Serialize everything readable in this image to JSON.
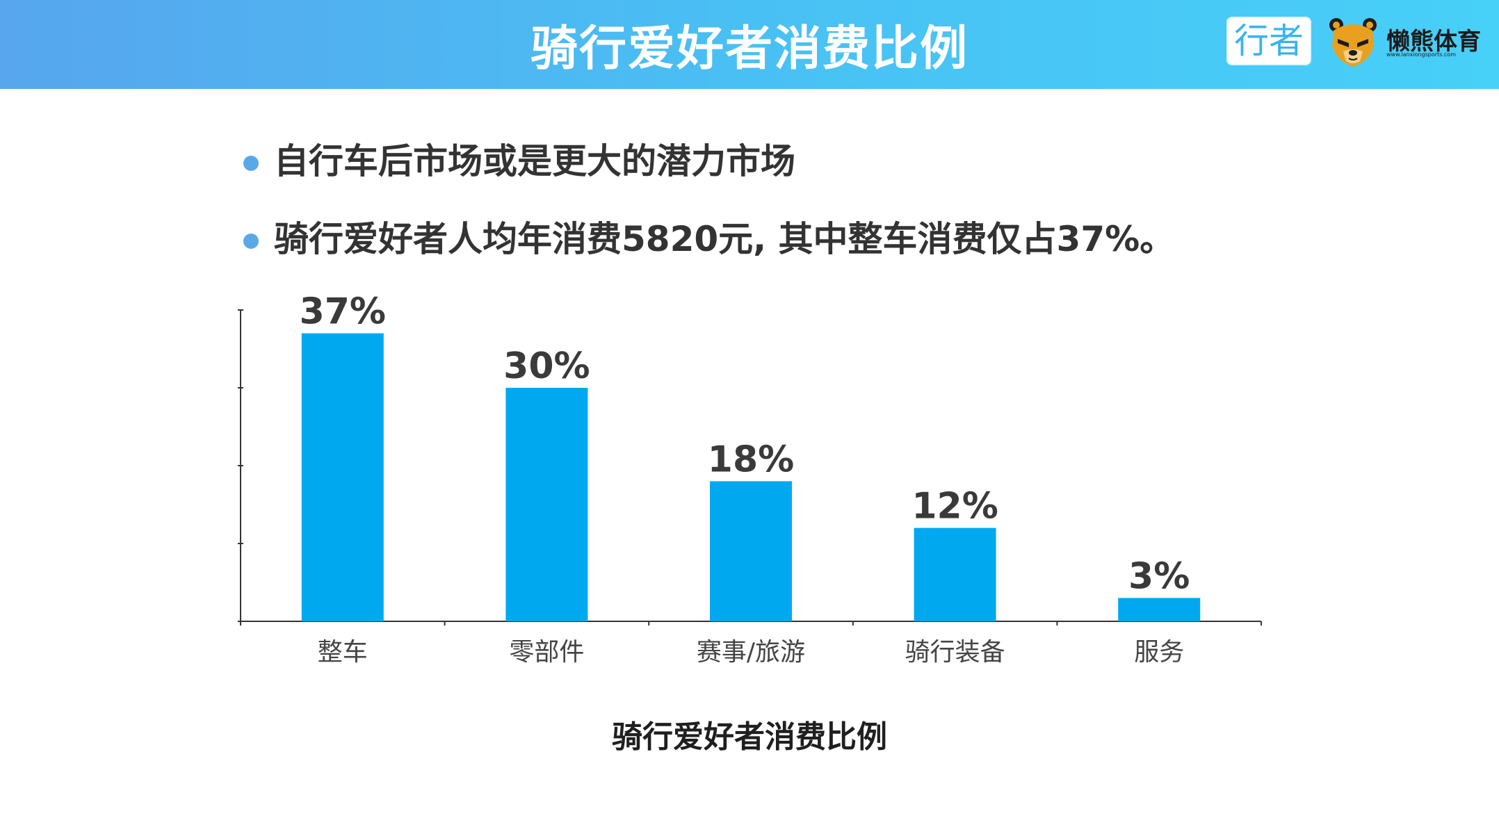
{
  "header": {
    "title": "骑行爱好者消费比例",
    "badge_text": "行者",
    "brand_name": "懒熊体育",
    "brand_url": "www.lanxiongsports.com",
    "bg_color_start": "#57a6ee",
    "bg_color_end": "#47d0f8"
  },
  "bullets": [
    {
      "text": "自行车后市场或是更大的潜力市场",
      "icon": "bullet-dot"
    },
    {
      "text": "骑行爱好者人均年消费5820元, 其中整车消费仅占37%。",
      "icon": "bullet-dot"
    }
  ],
  "chart_data": {
    "type": "bar",
    "title": "骑行爱好者消费比例",
    "categories": [
      "整车",
      "零部件",
      "赛事/旅游",
      "骑行装备",
      "服务"
    ],
    "values": [
      37,
      30,
      18,
      12,
      3
    ],
    "value_labels": [
      "37%",
      "30%",
      "18%",
      "12%",
      "3%"
    ],
    "ylim": [
      0,
      40
    ],
    "bar_color": "#00a9ef",
    "grid": false,
    "legend": "none"
  }
}
